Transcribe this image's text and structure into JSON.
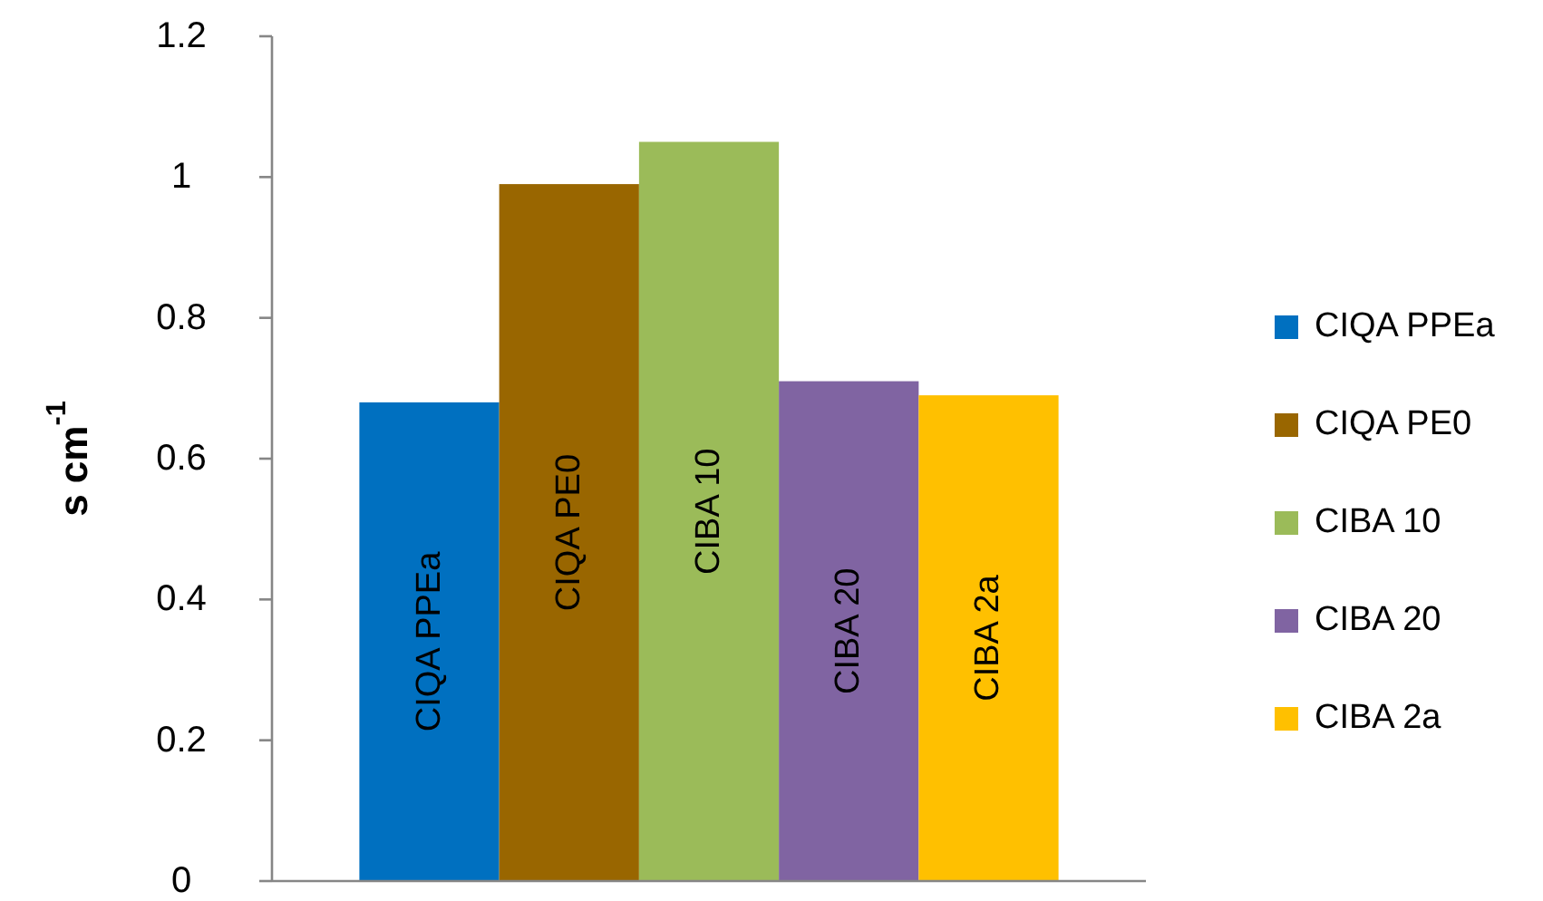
{
  "chart_data": {
    "type": "bar",
    "ylabel": "s cm$^{-1}$",
    "categories": [
      null
    ],
    "series": [
      {
        "name": "CIQA PPEa",
        "color": "#0070c0",
        "values": [
          0.68
        ]
      },
      {
        "name": "CIQA PE0",
        "color": "#996600",
        "values": [
          0.99
        ]
      },
      {
        "name": "CIBA 10",
        "color": "#9bbb59",
        "values": [
          1.05
        ]
      },
      {
        "name": "CIBA 20",
        "color": "#8064a2",
        "values": [
          0.71
        ]
      },
      {
        "name": "CIBA 2a",
        "color": "#ffc000",
        "values": [
          0.69
        ]
      }
    ],
    "ylim": [
      0,
      1.2
    ],
    "yticks": [
      0,
      0.2,
      0.4,
      0.6,
      0.8,
      1,
      1.2
    ],
    "grid": false,
    "legend": "right"
  }
}
